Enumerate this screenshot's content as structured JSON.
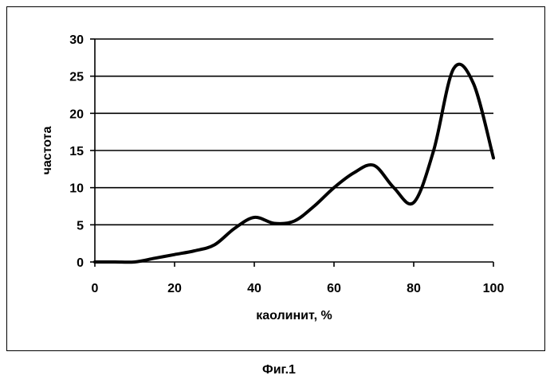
{
  "caption": "Фиг.1",
  "chart_data": {
    "type": "line",
    "title": "",
    "xlabel": "каолинит, %",
    "ylabel": "частота",
    "xlim": [
      0,
      100
    ],
    "ylim": [
      0,
      30
    ],
    "x_ticks": [
      "0",
      "20",
      "40",
      "60",
      "80",
      "100"
    ],
    "y_ticks": [
      "0",
      "5",
      "10",
      "15",
      "20",
      "25",
      "30"
    ],
    "grid": "horizontal",
    "legend": "none",
    "series": [
      {
        "color": "#000000",
        "x": [
          0,
          5,
          10,
          15,
          20,
          25,
          30,
          35,
          40,
          45,
          50,
          55,
          60,
          65,
          70,
          75,
          80,
          85,
          90,
          95,
          100
        ],
        "y": [
          0,
          0,
          0,
          0.5,
          1,
          1.5,
          2.3,
          4.5,
          6,
          5.2,
          5.5,
          7.5,
          10,
          12,
          13,
          10,
          8,
          15,
          26,
          24,
          14
        ]
      }
    ]
  }
}
